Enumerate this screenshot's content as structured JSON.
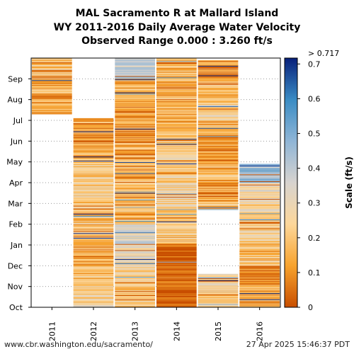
{
  "header": {
    "title_line1": "MAL Sacramento R at Mallard Island",
    "title_line2": "WY 2011-2016 Daily Average Water Velocity",
    "title_line3": "Observed Range 0.000 : 3.260 ft/s"
  },
  "footer": {
    "url": "www.cbr.washington.edu/sacramento/",
    "timestamp": "27 Apr 2025 15:46:37 PDT"
  },
  "chart_data": {
    "type": "heatmap",
    "title": "MAL Sacramento R at Mallard Island WY 2011-2016 Daily Average Water Velocity",
    "subtitle": "Observed Range 0.000 : 3.260 ft/s",
    "x_categories": [
      "2011",
      "2012",
      "2013",
      "2014",
      "2015",
      "2016"
    ],
    "y_months": [
      "Oct",
      "Nov",
      "Dec",
      "Jan",
      "Feb",
      "Mar",
      "Apr",
      "May",
      "Jun",
      "Jul",
      "Aug",
      "Sep"
    ],
    "colorbar": {
      "label": "Scale (ft/s)",
      "ticks": [
        0,
        0.1,
        0.2,
        0.3,
        0.4,
        0.5,
        0.6,
        0.7
      ],
      "max_label": "> 0.717",
      "range": [
        0,
        0.717
      ],
      "colors": [
        "#c84e00",
        "#f7a32e",
        "#fdd79a",
        "#d7d3cf",
        "#8fb5d6",
        "#3a8cc4",
        "#08207a"
      ]
    },
    "coverage_months": [
      {
        "year": "2011",
        "segments": [
          [
            9.3,
            12
          ]
        ]
      },
      {
        "year": "2012",
        "segments": [
          [
            0,
            9.1
          ]
        ]
      },
      {
        "year": "2013",
        "segments": [
          [
            0,
            12
          ]
        ]
      },
      {
        "year": "2014",
        "segments": [
          [
            0,
            12
          ]
        ]
      },
      {
        "year": "2015",
        "segments": [
          [
            0,
            1.6
          ],
          [
            4.7,
            11.9
          ]
        ]
      },
      {
        "year": "2016",
        "segments": [
          [
            0,
            2.3
          ],
          [
            2.3,
            6.2
          ],
          [
            6.2,
            6.9
          ]
        ]
      }
    ],
    "season_profile_ft_s": [
      {
        "year": "2011",
        "month_values": [
          null,
          null,
          null,
          null,
          null,
          null,
          null,
          null,
          null,
          0.14,
          0.15,
          0.2
        ]
      },
      {
        "year": "2012",
        "month_values": [
          0.25,
          0.18,
          0.16,
          0.17,
          0.2,
          0.22,
          0.2,
          0.15,
          0.13,
          0.14,
          null,
          null
        ]
      },
      {
        "year": "2013",
        "month_values": [
          0.2,
          0.22,
          0.28,
          0.34,
          0.2,
          0.2,
          0.18,
          0.15,
          0.14,
          0.12,
          0.16,
          0.4
        ]
      },
      {
        "year": "2014",
        "month_values": [
          0.0,
          0.06,
          0.0,
          0.2,
          0.24,
          0.26,
          0.22,
          0.22,
          0.17,
          0.16,
          0.16,
          0.18
        ]
      },
      {
        "year": "2015",
        "month_values": [
          0.22,
          0.25,
          null,
          null,
          null,
          0.14,
          0.16,
          0.13,
          0.15,
          0.22,
          0.16,
          0.12
        ]
      },
      {
        "year": "2016",
        "month_values": [
          0.12,
          0.1,
          0.18,
          0.22,
          0.25,
          0.3,
          0.45,
          0.3,
          null,
          null,
          null,
          null
        ]
      }
    ]
  }
}
